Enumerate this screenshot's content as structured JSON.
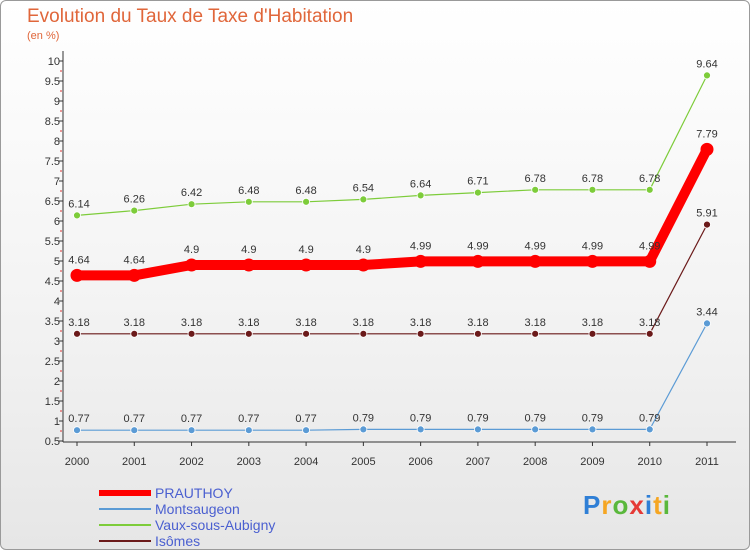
{
  "chart_data": {
    "type": "line",
    "title": "Evolution du Taux de Taxe d'Habitation",
    "subtitle": "(en %)",
    "categories": [
      "2000",
      "2001",
      "2002",
      "2003",
      "2004",
      "2005",
      "2006",
      "2007",
      "2008",
      "2009",
      "2010",
      "2011"
    ],
    "ylim": [
      0.5,
      10
    ],
    "yticks": [
      "0.5",
      "1",
      "1.5",
      "2",
      "2.5",
      "3",
      "3.5",
      "4",
      "4.5",
      "5",
      "5.5",
      "6",
      "6.5",
      "7",
      "7.5",
      "8",
      "8.5",
      "9",
      "9.5",
      "10"
    ],
    "grid": false,
    "legend_position": "bottom-left",
    "series": [
      {
        "name": "PRAUTHOY",
        "color": "#ff0000",
        "values": [
          4.64,
          4.64,
          4.9,
          4.9,
          4.9,
          4.9,
          4.99,
          4.99,
          4.99,
          4.99,
          4.99,
          7.79
        ],
        "labels": [
          "4.64",
          "4.64",
          "4.9",
          "4.9",
          "4.9",
          "4.9",
          "4.99",
          "4.99",
          "4.99",
          "4.99",
          "4.99",
          "7.79"
        ]
      },
      {
        "name": "Montsaugeon",
        "color": "#5b9bd5",
        "values": [
          0.77,
          0.77,
          0.77,
          0.77,
          0.77,
          0.79,
          0.79,
          0.79,
          0.79,
          0.79,
          0.79,
          3.44
        ],
        "labels": [
          "0.77",
          "0.77",
          "0.77",
          "0.77",
          "0.77",
          "0.79",
          "0.79",
          "0.79",
          "0.79",
          "0.79",
          "0.79",
          "3.44"
        ]
      },
      {
        "name": "Vaux-sous-Aubigny",
        "color": "#7dcc3a",
        "values": [
          6.14,
          6.26,
          6.42,
          6.48,
          6.48,
          6.54,
          6.64,
          6.71,
          6.78,
          6.78,
          6.78,
          9.64
        ],
        "labels": [
          "6.14",
          "6.26",
          "6.42",
          "6.48",
          "6.48",
          "6.54",
          "6.64",
          "6.71",
          "6.78",
          "6.78",
          "6.78",
          "9.64"
        ]
      },
      {
        "name": "Isômes",
        "color": "#6b1a1a",
        "values": [
          3.18,
          3.18,
          3.18,
          3.18,
          3.18,
          3.18,
          3.18,
          3.18,
          3.18,
          3.18,
          3.18,
          5.91
        ],
        "labels": [
          "3.18",
          "3.18",
          "3.18",
          "3.18",
          "3.18",
          "3.18",
          "3.18",
          "3.18",
          "3.18",
          "3.18",
          "3.18",
          "5.91"
        ]
      }
    ]
  },
  "logo": {
    "letters": [
      "P",
      "r",
      "o",
      "x",
      "i",
      "t",
      "i"
    ],
    "colors": [
      "#2f7fd6",
      "#f5a623",
      "#5ab83c",
      "#e53935",
      "#2f7fd6",
      "#f5a623",
      "#5ab83c"
    ]
  }
}
